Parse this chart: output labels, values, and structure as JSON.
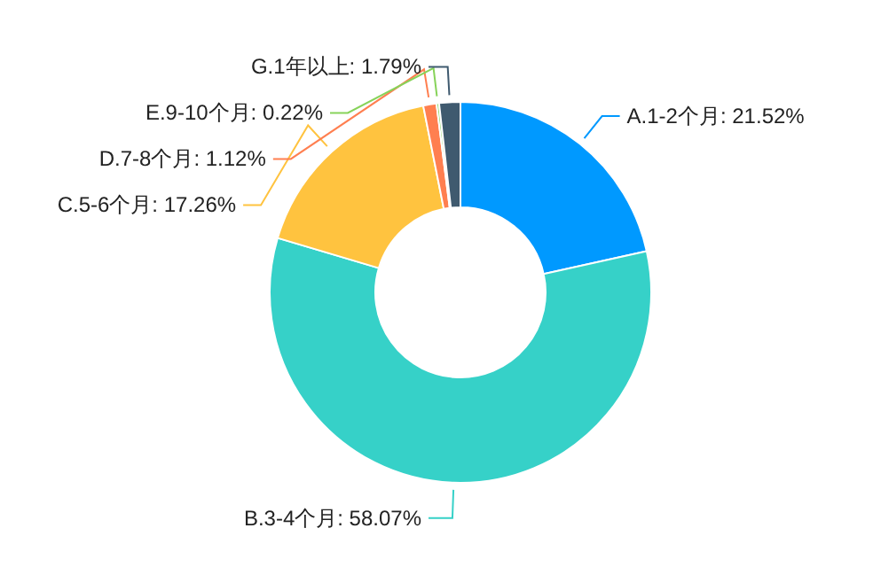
{
  "chart_data": {
    "type": "donut",
    "categories": [
      "A.1-2个月",
      "B.3-4个月",
      "C.5-6个月",
      "D.7-8个月",
      "E.9-10个月",
      "G.1年以上"
    ],
    "values": [
      21.52,
      58.07,
      17.26,
      1.12,
      0.22,
      1.79
    ],
    "colors": [
      "#0099ff",
      "#36d1c8",
      "#ffc33f",
      "#ff7f50",
      "#87d35a",
      "#3f5a6f"
    ],
    "value_labels": [
      "21.52%",
      "58.07%",
      "17.26%",
      "1.12%",
      "0.22%",
      "1.79%"
    ]
  }
}
